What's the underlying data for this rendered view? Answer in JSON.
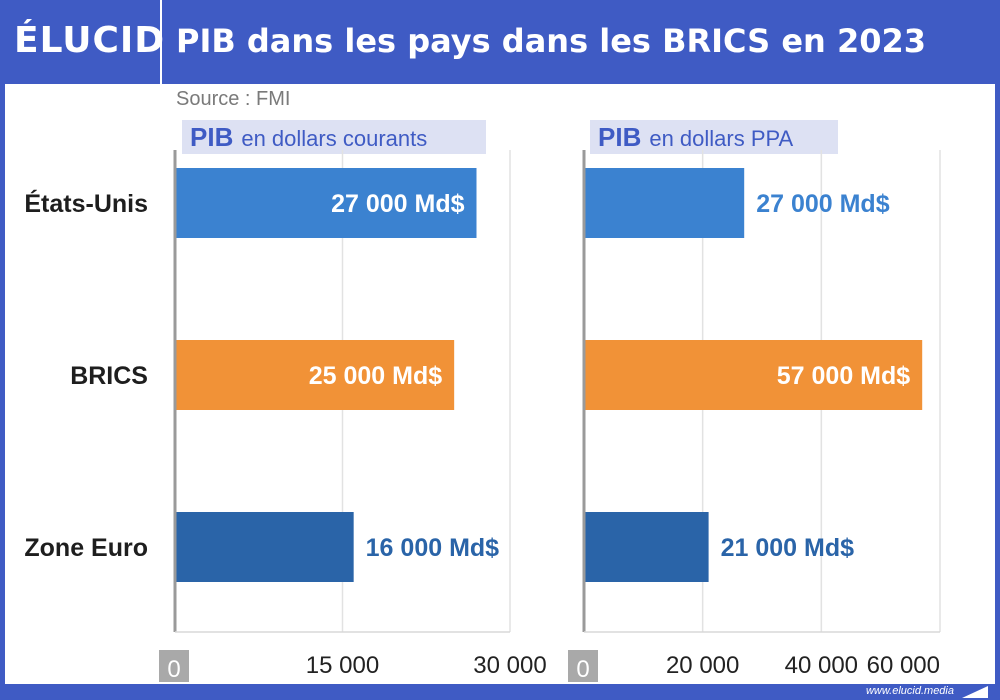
{
  "header": {
    "logo": "ÉLUCID",
    "title": "PIB dans les pays dans les BRICS en 2023"
  },
  "source": "Source : FMI",
  "footer": {
    "url": "www.elucid.media"
  },
  "colors": {
    "background": "#3f5bc4",
    "etats_unis": "#3b82d0",
    "brics": "#f19237",
    "zone_euro": "#2a64a8",
    "label_box": "#dde1f3",
    "accent_text": "#3f5bc4"
  },
  "chart_data": [
    {
      "type": "bar",
      "orientation": "horizontal",
      "title_bold": "PIB",
      "title_rest": "en dollars courants",
      "categories": [
        "États-Unis",
        "BRICS",
        "Zone Euro"
      ],
      "values": [
        27000,
        25000,
        16000
      ],
      "data_labels": [
        "27 000 Md$",
        "25 000 Md$",
        "16 000 Md$"
      ],
      "xlim": [
        0,
        30000
      ],
      "ticks": [
        0,
        15000,
        30000
      ],
      "tick_labels": [
        "0",
        "15 000",
        "30 000"
      ],
      "grid": true
    },
    {
      "type": "bar",
      "orientation": "horizontal",
      "title_bold": "PIB",
      "title_rest": "en dollars PPA",
      "categories": [
        "États-Unis",
        "BRICS",
        "Zone Euro"
      ],
      "values": [
        27000,
        57000,
        21000
      ],
      "data_labels": [
        "27 000 Md$",
        "57 000 Md$",
        "21 000 Md$"
      ],
      "xlim": [
        0,
        60000
      ],
      "ticks": [
        0,
        20000,
        40000,
        60000
      ],
      "tick_labels": [
        "0",
        "20 000",
        "40 000",
        "60 000"
      ],
      "grid": true
    }
  ]
}
